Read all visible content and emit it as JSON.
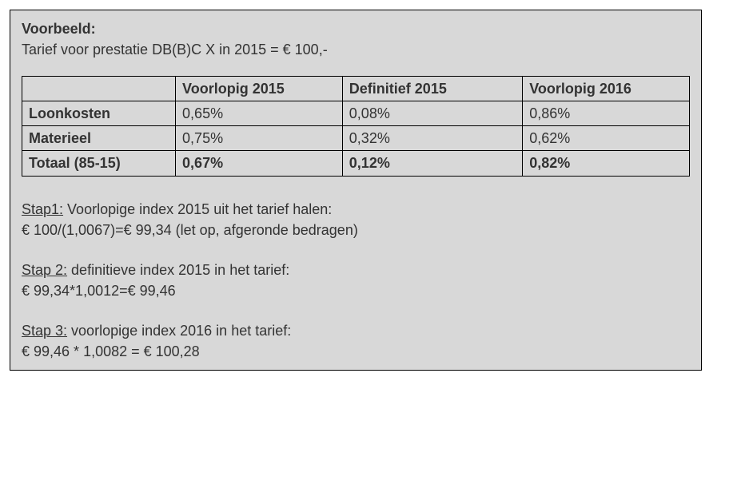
{
  "panel": {
    "title": "Voorbeeld:",
    "intro": "Tarief voor prestatie DB(B)C X in 2015 = € 100,-"
  },
  "table": {
    "columns": [
      "",
      "Voorlopig 2015",
      "Definitief 2015",
      "Voorlopig 2016"
    ],
    "rows": [
      {
        "label": "Loonkosten",
        "cells": [
          "0,65%",
          "0,08%",
          "0,86%"
        ],
        "bold": false
      },
      {
        "label": "Materieel",
        "cells": [
          "0,75%",
          "0,32%",
          "0,62%"
        ],
        "bold": false
      },
      {
        "label": "Totaal (85-15)",
        "cells": [
          "0,67%",
          "0,12%",
          "0,82%"
        ],
        "bold": true
      }
    ]
  },
  "steps": [
    {
      "heading": "Stap1:",
      "rest": " Voorlopige index 2015 uit het tarief halen:",
      "calc": "€ 100/(1,0067)=€ 99,34 (let op, afgeronde bedragen)"
    },
    {
      "heading": "Stap 2:",
      "rest": " definitieve index 2015 in het tarief:",
      "calc": "€ 99,34*1,0012=€ 99,46"
    },
    {
      "heading": "Stap 3:",
      "rest": " voorlopige index 2016 in het tarief:",
      "calc": "€ 99,46 * 1,0082 = € 100,28"
    }
  ]
}
